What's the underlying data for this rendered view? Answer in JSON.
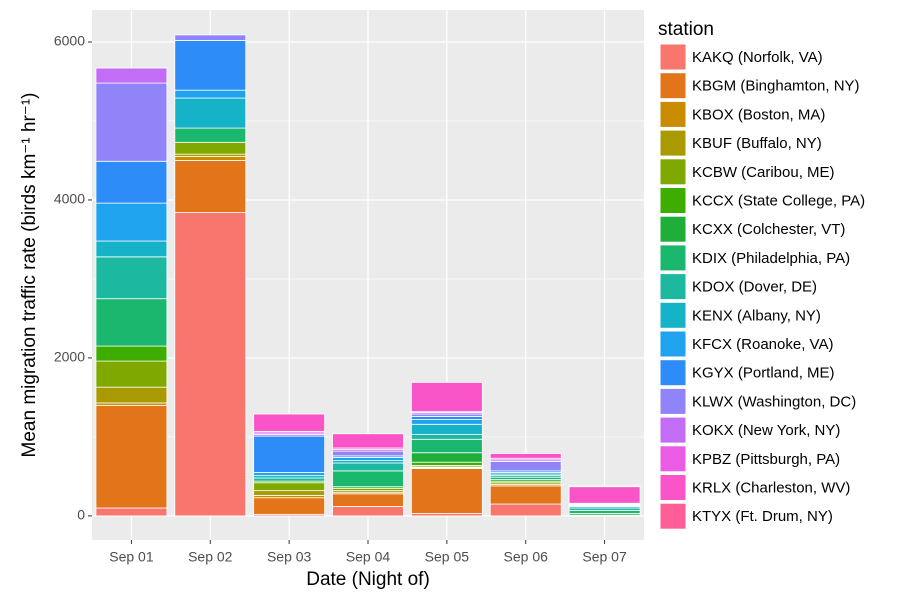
{
  "chart_data": {
    "type": "stacked_bar",
    "x_label": "Date (Night of)",
    "y_label": "Mean migration traffic rate (birds km⁻¹ hr⁻¹)",
    "legend_title": "station",
    "legend_position": "right",
    "categories": [
      "Sep 01",
      "Sep 02",
      "Sep 03",
      "Sep 04",
      "Sep 05",
      "Sep 06",
      "Sep 07"
    ],
    "ylim": [
      -305,
      6405
    ],
    "yticks": [
      0,
      2000,
      4000,
      6000
    ],
    "grid": true,
    "series": [
      {
        "name": "KAKQ (Norfolk, VA)",
        "color": "#F8766D",
        "values": [
          100,
          3840,
          20,
          120,
          30,
          150,
          0
        ]
      },
      {
        "name": "KBGM (Binghamton, NY)",
        "color": "#E2741A",
        "values": [
          1300,
          660,
          210,
          160,
          570,
          230,
          10
        ]
      },
      {
        "name": "KBOX (Boston, MA)",
        "color": "#C98B00",
        "values": [
          30,
          50,
          30,
          20,
          10,
          20,
          0
        ]
      },
      {
        "name": "KBUF (Buffalo, NY)",
        "color": "#A89A00",
        "values": [
          200,
          30,
          60,
          20,
          10,
          20,
          0
        ]
      },
      {
        "name": "KCBW (Caribou, ME)",
        "color": "#7FA900",
        "values": [
          330,
          150,
          100,
          30,
          20,
          20,
          0
        ]
      },
      {
        "name": "KCCX (State College, PA)",
        "color": "#3DAE00",
        "values": [
          190,
          0,
          20,
          0,
          40,
          0,
          0
        ]
      },
      {
        "name": "KCXX (Colchester, VT)",
        "color": "#1FAE3A",
        "values": [
          0,
          0,
          0,
          20,
          120,
          20,
          20
        ]
      },
      {
        "name": "KDIX (Philadelphia, PA)",
        "color": "#1BB76E",
        "values": [
          600,
          180,
          0,
          200,
          170,
          30,
          40
        ]
      },
      {
        "name": "KDOX (Dover, DE)",
        "color": "#1CB89F",
        "values": [
          530,
          0,
          40,
          100,
          60,
          20,
          30
        ]
      },
      {
        "name": "KENX (Albany, NY)",
        "color": "#16B2C8",
        "values": [
          200,
          380,
          30,
          30,
          130,
          20,
          20
        ]
      },
      {
        "name": "KFCX (Roanoke, VA)",
        "color": "#1FA3EE",
        "values": [
          480,
          100,
          40,
          40,
          60,
          20,
          10
        ]
      },
      {
        "name": "KGYX (Portland, ME)",
        "color": "#2E8CF9",
        "values": [
          530,
          630,
          460,
          20,
          40,
          20,
          10
        ]
      },
      {
        "name": "KLWX (Washington, DC)",
        "color": "#9184F9",
        "values": [
          990,
          70,
          20,
          60,
          30,
          120,
          10
        ]
      },
      {
        "name": "KOKX (New York, NY)",
        "color": "#C36CF6",
        "values": [
          190,
          0,
          20,
          20,
          20,
          20,
          10
        ]
      },
      {
        "name": "KPBZ (Pittsburgh, PA)",
        "color": "#E95CE3",
        "values": [
          0,
          0,
          20,
          20,
          10,
          20,
          0
        ]
      },
      {
        "name": "KRLX (Charleston, WV)",
        "color": "#F954C8",
        "values": [
          0,
          0,
          220,
          180,
          370,
          60,
          210
        ]
      },
      {
        "name": "KTYX (Ft. Drum, NY)",
        "color": "#FF5F96",
        "values": [
          0,
          0,
          0,
          0,
          0,
          0,
          10
        ]
      }
    ]
  }
}
